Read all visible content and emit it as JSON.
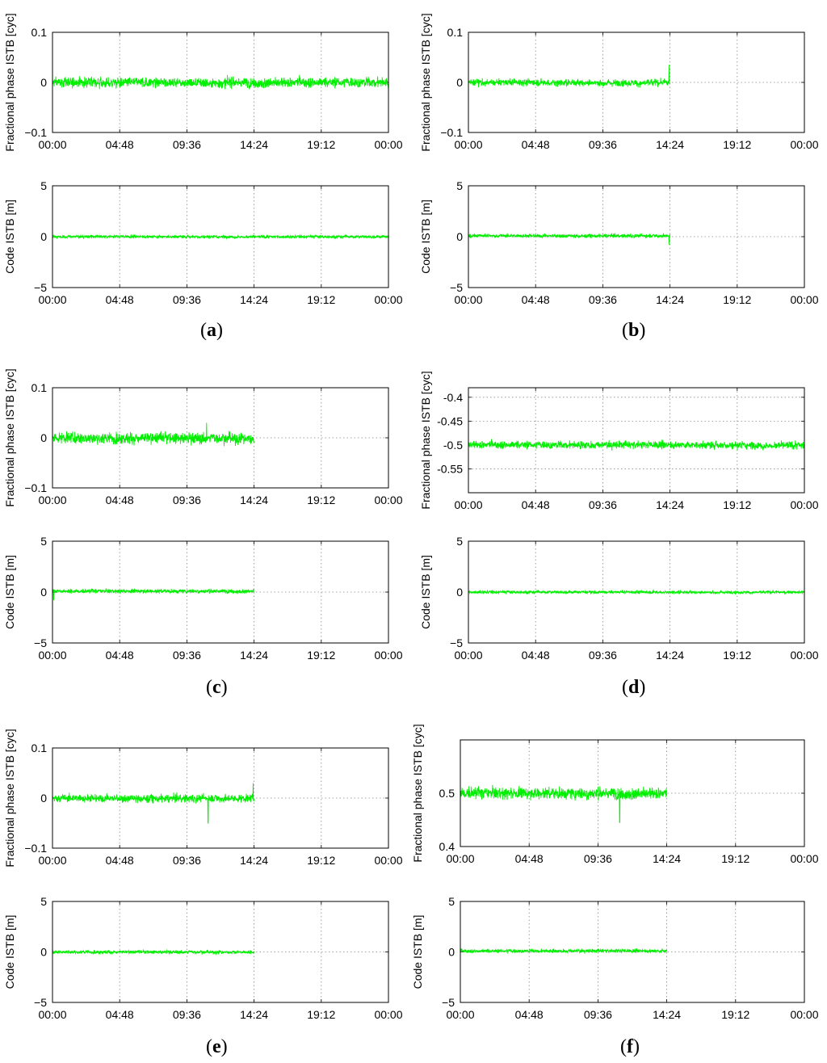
{
  "panels": [
    {
      "label": "a",
      "open": "(",
      "close": ")"
    },
    {
      "label": "b",
      "open": "(",
      "close": ")"
    },
    {
      "label": "c",
      "open": "(",
      "close": ")"
    },
    {
      "label": "d",
      "open": "(",
      "close": ")"
    },
    {
      "label": "e",
      "open": "(",
      "close": ")"
    },
    {
      "label": "f",
      "open": "(",
      "close": ")"
    }
  ],
  "chart_data": [
    {
      "panel": "a",
      "type": "line",
      "ylabel": "Fractional phase ISTB [cyc]",
      "ylim": [
        -0.1,
        0.1
      ],
      "ytick_labels": [
        "0.1",
        "0",
        "−0.1"
      ],
      "ytick_values": [
        0.1,
        0,
        -0.1
      ],
      "xlim": [
        "00:00",
        "24:00"
      ],
      "xtick_labels": [
        "00:00",
        "04:48",
        "09:36",
        "14:24",
        "19:12",
        "00:00"
      ],
      "grid": true,
      "series_color": "#00ee00",
      "x_end": "24:00",
      "level": 0.0,
      "noise": 0.01,
      "spikes": []
    },
    {
      "panel": "a",
      "type": "line",
      "ylabel": "Code ISTB [m]",
      "ylim": [
        -5,
        5
      ],
      "ytick_labels": [
        "5",
        "0",
        "−5"
      ],
      "ytick_values": [
        5,
        0,
        -5
      ],
      "xlim": [
        "00:00",
        "24:00"
      ],
      "xtick_labels": [
        "00:00",
        "04:48",
        "09:36",
        "14:24",
        "19:12",
        "00:00"
      ],
      "grid": true,
      "series_color": "#00ee00",
      "x_end": "24:00",
      "level": 0.0,
      "noise": 0.15,
      "spikes": []
    },
    {
      "panel": "b",
      "type": "line",
      "ylabel": "Fractional phase ISTB [cyc]",
      "ylim": [
        -0.1,
        0.1
      ],
      "ytick_labels": [
        "0.1",
        "0",
        "−0.1"
      ],
      "ytick_values": [
        0.1,
        0,
        -0.1
      ],
      "xlim": [
        "00:00",
        "24:00"
      ],
      "xtick_labels": [
        "00:00",
        "04:48",
        "09:36",
        "14:24",
        "19:12",
        "00:00"
      ],
      "grid": true,
      "series_color": "#00ee00",
      "x_end": "14:24",
      "level": 0.0,
      "noise": 0.007,
      "spikes": [
        {
          "t": "14:20",
          "v": 0.035
        }
      ]
    },
    {
      "panel": "b",
      "type": "line",
      "ylabel": "Code ISTB [m]",
      "ylim": [
        -5,
        5
      ],
      "ytick_labels": [
        "5",
        "0",
        "−5"
      ],
      "ytick_values": [
        5,
        0,
        -5
      ],
      "xlim": [
        "00:00",
        "24:00"
      ],
      "xtick_labels": [
        "00:00",
        "04:48",
        "09:36",
        "14:24",
        "19:12",
        "00:00"
      ],
      "grid": true,
      "series_color": "#00ee00",
      "x_end": "14:24",
      "level": 0.1,
      "noise": 0.18,
      "spikes": [
        {
          "t": "14:20",
          "v": -0.8
        }
      ]
    },
    {
      "panel": "c",
      "type": "line",
      "ylabel": "Fractional phase ISTB [cyc]",
      "ylim": [
        -0.1,
        0.1
      ],
      "ytick_labels": [
        "0.1",
        "0",
        "−0.1"
      ],
      "ytick_values": [
        0.1,
        0,
        -0.1
      ],
      "xlim": [
        "00:00",
        "24:00"
      ],
      "xtick_labels": [
        "00:00",
        "04:48",
        "09:36",
        "14:24",
        "19:12",
        "00:00"
      ],
      "grid": true,
      "series_color": "#00ee00",
      "x_end": "14:24",
      "level": 0.0,
      "noise": 0.011,
      "spikes": [
        {
          "t": "11:00",
          "v": 0.03
        }
      ]
    },
    {
      "panel": "c",
      "type": "line",
      "ylabel": "Code ISTB [m]",
      "ylim": [
        -5,
        5
      ],
      "ytick_labels": [
        "5",
        "0",
        "−5"
      ],
      "ytick_values": [
        5,
        0,
        -5
      ],
      "xlim": [
        "00:00",
        "24:00"
      ],
      "xtick_labels": [
        "00:00",
        "04:48",
        "09:36",
        "14:24",
        "19:12",
        "00:00"
      ],
      "grid": true,
      "series_color": "#00ee00",
      "x_end": "14:24",
      "level": 0.1,
      "noise": 0.2,
      "spikes": [
        {
          "t": "00:05",
          "v": -0.8
        }
      ]
    },
    {
      "panel": "d",
      "type": "line",
      "ylabel": "Fractional phase ISTB [cyc]",
      "ylim": [
        -0.6,
        -0.38
      ],
      "ytick_labels": [
        "-0.4",
        "-0.45",
        "-0.5",
        "-0.55"
      ],
      "ytick_values": [
        -0.4,
        -0.45,
        -0.5,
        -0.55
      ],
      "xlim": [
        "00:00",
        "24:00"
      ],
      "xtick_labels": [
        "00:00",
        "04:48",
        "09:36",
        "14:24",
        "19:12",
        "00:00"
      ],
      "grid": true,
      "series_color": "#00ee00",
      "x_end": "24:00",
      "level": -0.5,
      "noise": 0.008,
      "spikes": []
    },
    {
      "panel": "d",
      "type": "line",
      "ylabel": "Code ISTB [m]",
      "ylim": [
        -5,
        5
      ],
      "ytick_labels": [
        "5",
        "0",
        "−5"
      ],
      "ytick_values": [
        5,
        0,
        -5
      ],
      "xlim": [
        "00:00",
        "24:00"
      ],
      "xtick_labels": [
        "00:00",
        "04:48",
        "09:36",
        "14:24",
        "19:12",
        "00:00"
      ],
      "grid": true,
      "series_color": "#00ee00",
      "x_end": "24:00",
      "level": 0.0,
      "noise": 0.15,
      "spikes": []
    },
    {
      "panel": "e",
      "type": "line",
      "ylabel": "Fractional phase ISTB [cyc]",
      "ylim": [
        -0.1,
        0.1
      ],
      "ytick_labels": [
        "0.1",
        "0",
        "−0.1"
      ],
      "ytick_values": [
        0.1,
        0,
        -0.1
      ],
      "xlim": [
        "00:00",
        "24:00"
      ],
      "xtick_labels": [
        "00:00",
        "04:48",
        "09:36",
        "14:24",
        "19:12",
        "00:00"
      ],
      "grid": true,
      "series_color": "#00ee00",
      "x_end": "14:24",
      "level": 0.0,
      "noise": 0.008,
      "spikes": [
        {
          "t": "11:07",
          "v": -0.05
        },
        {
          "t": "14:20",
          "v": 0.03
        }
      ]
    },
    {
      "panel": "e",
      "type": "line",
      "ylabel": "Code ISTB [m]",
      "ylim": [
        -5,
        5
      ],
      "ytick_labels": [
        "5",
        "0",
        "−5"
      ],
      "ytick_values": [
        5,
        0,
        -5
      ],
      "xlim": [
        "00:00",
        "24:00"
      ],
      "xtick_labels": [
        "00:00",
        "04:48",
        "09:36",
        "14:24",
        "19:12",
        "00:00"
      ],
      "grid": true,
      "series_color": "#00ee00",
      "x_end": "14:24",
      "level": 0.0,
      "noise": 0.17,
      "spikes": []
    },
    {
      "panel": "f",
      "type": "line",
      "ylabel": "Fractional phase ISTB [cyc]",
      "ylim": [
        0.4,
        0.6
      ],
      "ytick_labels": [
        "0.5",
        "0.4"
      ],
      "ytick_values": [
        0.5,
        0.4
      ],
      "xlim": [
        "00:00",
        "24:00"
      ],
      "xtick_labels": [
        "00:00",
        "04:48",
        "09:36",
        "14:24",
        "19:12",
        "00:00"
      ],
      "grid": true,
      "series_color": "#00ee00",
      "x_end": "14:24",
      "level": 0.5,
      "noise": 0.011,
      "spikes": [
        {
          "t": "11:07",
          "v": 0.445
        }
      ]
    },
    {
      "panel": "f",
      "type": "line",
      "ylabel": "Code ISTB [m]",
      "ylim": [
        -5,
        5
      ],
      "ytick_labels": [
        "5",
        "0",
        "−5"
      ],
      "ytick_values": [
        5,
        0,
        -5
      ],
      "xlim": [
        "00:00",
        "24:00"
      ],
      "xtick_labels": [
        "00:00",
        "04:48",
        "09:36",
        "14:24",
        "19:12",
        "00:00"
      ],
      "grid": true,
      "series_color": "#00ee00",
      "x_end": "14:24",
      "level": 0.1,
      "noise": 0.18,
      "spikes": []
    }
  ]
}
